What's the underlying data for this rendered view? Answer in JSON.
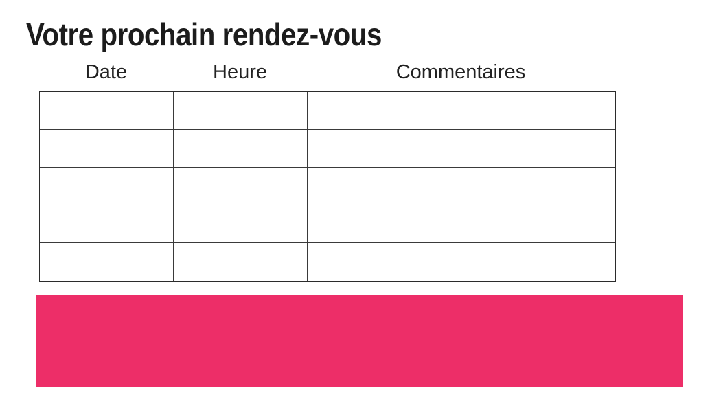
{
  "document": {
    "title": "Votre prochain rendez-vous"
  },
  "appointments_table": {
    "columns": [
      "Date",
      "Heure",
      "Commentaires"
    ],
    "rows": [
      [
        "",
        "",
        ""
      ],
      [
        "",
        "",
        ""
      ],
      [
        "",
        "",
        ""
      ],
      [
        "",
        "",
        ""
      ],
      [
        "",
        "",
        ""
      ]
    ]
  },
  "banner": {
    "text": "",
    "background_color": "#ED2E68"
  },
  "colors": {
    "accent_pink": "#ED2E68",
    "table_border": "#3a3a3a",
    "text": "#1c1c1c"
  }
}
